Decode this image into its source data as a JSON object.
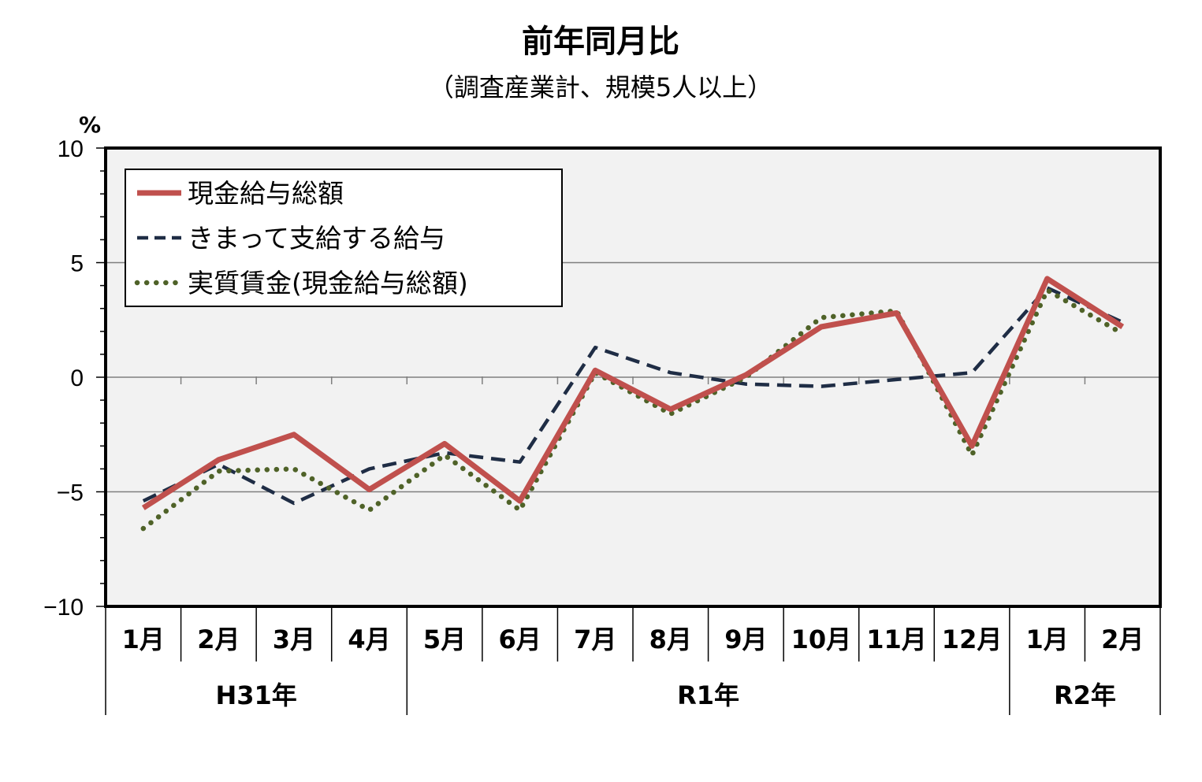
{
  "chart_data": {
    "type": "line",
    "title": "前年同月比",
    "subtitle": "（調査産業計、規模5人以上）",
    "ylabel": "%",
    "ylim": [
      -10,
      10
    ],
    "yticks": [
      -10,
      -5,
      0,
      5,
      10
    ],
    "ytick_labels": [
      "−10",
      "−5",
      "0",
      "5",
      "10"
    ],
    "categories": [
      "1月",
      "2月",
      "3月",
      "4月",
      "5月",
      "6月",
      "7月",
      "8月",
      "9月",
      "10月",
      "11月",
      "12月",
      "1月",
      "2月"
    ],
    "year_groups": [
      {
        "label": "H31年",
        "start": 0,
        "end": 3
      },
      {
        "label": "R1年",
        "start": 4,
        "end": 11
      },
      {
        "label": "R2年",
        "start": 12,
        "end": 13
      }
    ],
    "grid": "horizontal",
    "legend_position": "top-left",
    "series": [
      {
        "name": "現金給与総額",
        "color": "#c0504d",
        "style": "solid",
        "values": [
          -5.7,
          -3.6,
          -2.5,
          -4.9,
          -2.9,
          -5.4,
          0.3,
          -1.4,
          0.1,
          2.2,
          2.8,
          -3.0,
          4.3,
          2.2
        ]
      },
      {
        "name": "きまって支給する給与",
        "color": "#1f2d45",
        "style": "dashed",
        "values": [
          -5.4,
          -3.8,
          -5.5,
          -4.0,
          -3.3,
          -3.7,
          1.3,
          0.2,
          -0.3,
          -0.4,
          -0.1,
          0.2,
          3.9,
          2.4
        ]
      },
      {
        "name": "実質賃金(現金給与総額)",
        "color": "#4f6228",
        "style": "dotted",
        "values": [
          -6.6,
          -4.1,
          -4.0,
          -5.8,
          -3.4,
          -5.8,
          0.2,
          -1.6,
          0.0,
          2.6,
          2.9,
          -3.4,
          3.8,
          1.9
        ]
      }
    ]
  }
}
